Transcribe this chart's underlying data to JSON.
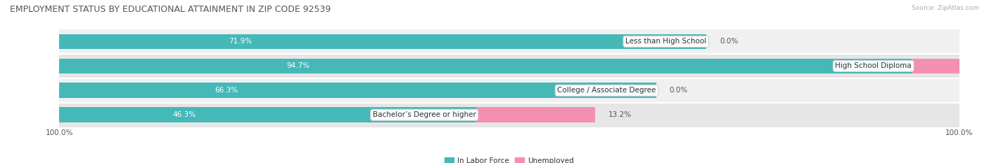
{
  "title": "EMPLOYMENT STATUS BY EDUCATIONAL ATTAINMENT IN ZIP CODE 92539",
  "source": "Source: ZipAtlas.com",
  "categories": [
    "Less than High School",
    "High School Diploma",
    "College / Associate Degree",
    "Bachelor’s Degree or higher"
  ],
  "labor_force": [
    71.9,
    94.7,
    66.3,
    46.3
  ],
  "unemployed": [
    0.0,
    8.0,
    0.0,
    13.2
  ],
  "labor_force_color": "#45b8b8",
  "unemployed_color": "#f48fb1",
  "row_bg_colors": [
    "#f0f0f0",
    "#e6e6e6"
  ],
  "label_fontsize": 7.5,
  "title_fontsize": 9,
  "axis_label_fontsize": 7.5,
  "legend_fontsize": 7.5,
  "bar_height": 0.62,
  "xlim": [
    0,
    100
  ],
  "lf_label_color": "white",
  "unemp_label_color": "#555555",
  "cat_label_color": "#333333",
  "title_color": "#555555"
}
